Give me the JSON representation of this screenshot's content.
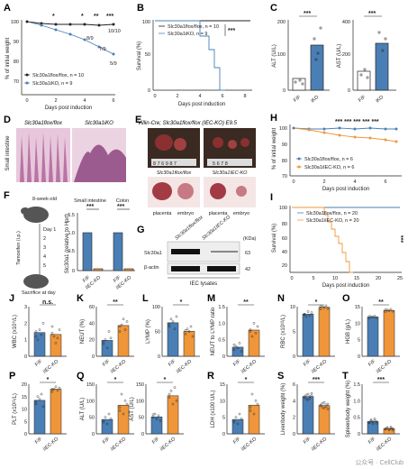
{
  "colors": {
    "ff": "#4a7fb5",
    "iko": "#f0963a",
    "black": "#222222",
    "he_pink": "#c98fb5",
    "he_dark": "#7a3e78"
  },
  "panels": {
    "A": "A",
    "B": "B",
    "C": "C",
    "D": "D",
    "E": "E",
    "F": "F",
    "G": "G",
    "H": "H",
    "I": "I",
    "J": "J",
    "K": "K",
    "L": "L",
    "M": "M",
    "N": "N",
    "O": "O",
    "P": "P",
    "Q": "Q",
    "R": "R",
    "S": "S",
    "T": "T"
  },
  "A": {
    "ylabel": "% of initial weight",
    "xlabel": "Days post induction",
    "legend": [
      "Slc30a1flox/flox, n = 10",
      "Slc30a1iKO, n = 9"
    ],
    "counts": [
      "8/9",
      "7/9",
      "5/9",
      "10/10"
    ],
    "sig": [
      "*",
      "*",
      "**",
      "***"
    ]
  },
  "B": {
    "ylabel": "Survival (%)",
    "xlabel": "Days post induction",
    "legend": [
      "Slc30a1flox/flox, n = 10",
      "Slc30a1iKO, n = 9"
    ],
    "sig": "***"
  },
  "C": {
    "alt_label": "ALT (U/L)",
    "ast_label": "AST (U/L)",
    "groups": [
      "F/F",
      "iKO"
    ],
    "sig": "***"
  },
  "D": {
    "left": "Slc30a1flox/flox",
    "right": "Slc30a1iKO",
    "side": "Small intestine"
  },
  "E": {
    "title": "Villin-Cre; Slc30a1flox/flox (IEC-KO) E9.5",
    "top_labels": [
      "Slc30a1flox/flox",
      "Slc30a1IEC-KO"
    ],
    "bottom": [
      "placenta",
      "embryo",
      "placenta",
      "embryo"
    ]
  },
  "F": {
    "title_mouse": "8-week-old",
    "tam": "Tamoxifen (i.p.)",
    "days": [
      "Day 1",
      "2",
      "3",
      "4",
      "5"
    ],
    "sac": "Sacrifice at day",
    "ylabel": "Slc30a1 (relative to Hprt)",
    "cols": [
      "Small intestine",
      "Colon"
    ],
    "groups": [
      "F/F",
      "iIEC-KO"
    ],
    "sig": "***"
  },
  "G": {
    "cols": [
      "Slc30a1flox/flox",
      "Slc30a1IEC-KO"
    ],
    "rows": [
      "Slc30a1",
      "β-actin"
    ],
    "kda": [
      "63",
      "42"
    ],
    "kda_label": "(KDa)",
    "xlabel": "IEC lysates"
  },
  "H": {
    "ylabel": "% of initial weight",
    "xlabel": "Days post induction",
    "legend": [
      "Slc30a1flox/flox, n = 6",
      "Slc30a1iIEC-KO, n = 6"
    ],
    "sig": "*** *** *** *** ***"
  },
  "I": {
    "ylabel": "Survival (%)",
    "xlabel": "Days post induction",
    "legend": [
      "Slc30a1flox/flox, n = 20",
      "Slc30a1iIEC-KO, n = 20"
    ],
    "sig": "***"
  },
  "small": [
    {
      "key": "J",
      "ylabel": "WBC (x10⁹/L)",
      "sig": "n.s.",
      "ticks": [
        "0",
        "1",
        "2",
        "3"
      ],
      "ff": [
        1.5,
        1.0,
        1.6,
        1.3,
        2.0,
        1.2
      ],
      "ko": [
        1.4,
        1.2,
        0.8,
        1.1,
        1.6,
        1.8
      ]
    },
    {
      "key": "K",
      "ylabel": "NEUT (%)",
      "sig": "**",
      "ticks": [
        "0",
        "20",
        "40",
        "60"
      ],
      "ff": [
        15,
        20,
        10,
        30,
        22,
        18
      ],
      "ko": [
        30,
        38,
        45,
        32,
        42,
        36
      ]
    },
    {
      "key": "L",
      "ylabel": "LYMP (%)",
      "sig": "*",
      "ticks": [
        "0",
        "50",
        "100"
      ],
      "ff": [
        60,
        75,
        70,
        55,
        80,
        65
      ],
      "ko": [
        45,
        55,
        50,
        60,
        40,
        52
      ]
    },
    {
      "key": "M",
      "ylabel": "NEUT to LYMP ratio",
      "sig": "**",
      "ticks": [
        "0",
        "0.5",
        "1.0",
        "1.5"
      ],
      "ff": [
        0.2,
        0.3,
        0.25,
        0.4,
        0.15,
        0.35
      ],
      "ko": [
        0.8,
        0.6,
        1.0,
        0.7,
        0.9,
        0.75
      ]
    },
    {
      "key": "N",
      "ylabel": "RBC (x10¹²/L)",
      "sig": "*",
      "ticks": [
        "0",
        "5",
        "10"
      ],
      "ff": [
        8.5,
        8.0,
        9.0,
        8.2,
        8.8,
        8.4
      ],
      "ko": [
        9.5,
        10.0,
        9.8,
        10.2,
        9.6,
        10.1
      ]
    },
    {
      "key": "O",
      "ylabel": "HGB (g/L)",
      "sig": "**",
      "ticks": [
        "0",
        "5",
        "10",
        "15"
      ],
      "ff": [
        11.5,
        12,
        11.8,
        12.2,
        11.6,
        12.1
      ],
      "ko": [
        13.5,
        14,
        13.8,
        14.2,
        13.6,
        14.1
      ]
    },
    {
      "key": "P",
      "ylabel": "PLT (x10¹¹/L)",
      "sig": "*",
      "ticks": [
        "0",
        "5",
        "10",
        "15",
        "20"
      ],
      "ff": [
        12,
        15,
        14,
        16,
        11,
        13
      ],
      "ko": [
        17,
        18,
        19,
        17.5,
        18.5,
        18
      ]
    },
    {
      "key": "Q",
      "ylabel": "ALT (U/L)",
      "sig": "*",
      "ticks": [
        "0",
        "50",
        "100",
        "150"
      ],
      "ff": [
        40,
        50,
        30,
        60,
        45,
        35
      ],
      "ko": [
        80,
        120,
        60,
        100,
        90,
        70
      ]
    },
    {
      "key": "Q2",
      "ylabel": "AST (U/L)",
      "sig": "*",
      "ticks": [
        "0",
        "50",
        "100",
        "150"
      ],
      "ff": [
        50,
        60,
        45,
        55,
        40,
        58
      ],
      "ko": [
        110,
        130,
        90,
        140,
        100,
        120
      ]
    },
    {
      "key": "R",
      "ylabel": "LDH (x100 U/L)",
      "sig": "*",
      "ticks": [
        "0",
        "5",
        "10",
        "15"
      ],
      "ff": [
        4,
        5,
        3,
        6,
        4.5,
        3.5
      ],
      "ko": [
        8,
        12,
        6,
        10,
        9,
        7
      ]
    },
    {
      "key": "S",
      "ylabel": "Liver/body weight (%)",
      "sig": "***",
      "ticks": [
        "0",
        "2",
        "4",
        "6"
      ],
      "ff": [
        4.5,
        4.2,
        4.8,
        4.3,
        4.6,
        4.4,
        4.7,
        4.1,
        4.5,
        4.9
      ],
      "ko": [
        3.5,
        3.2,
        3.8,
        3.3,
        3.6,
        3.4,
        3.7,
        3.1,
        3.5,
        3.0
      ]
    },
    {
      "key": "T",
      "ylabel": "Spleen/body weight (%)",
      "sig": "***",
      "ticks": [
        "0",
        "0.5",
        "1.0",
        "1.5"
      ],
      "ff": [
        0.35,
        0.4,
        0.3,
        0.45,
        0.38,
        0.33,
        0.42,
        0.36,
        0.39,
        0.32
      ],
      "ko": [
        0.15,
        0.18,
        0.12,
        0.2,
        0.16,
        0.14,
        0.19,
        0.13,
        0.17,
        0.11
      ]
    }
  ],
  "groups": [
    "F/F",
    "iIEC-KO"
  ],
  "watermark": "公众号 · CellClub"
}
